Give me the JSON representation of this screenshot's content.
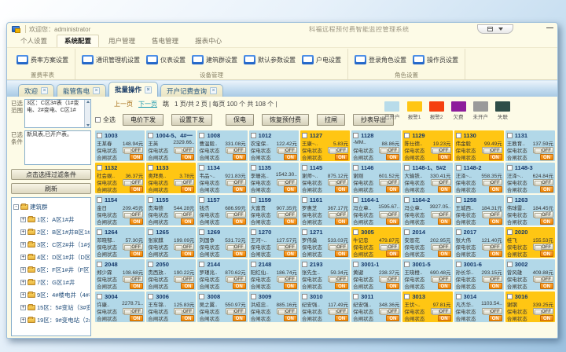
{
  "window": {
    "welcome": "欢迎您：administrator",
    "title": "科福远程预付费智能监控管理系统",
    "minimize": "—"
  },
  "menu_tabs": [
    {
      "label": "个人设置",
      "active": false
    },
    {
      "label": "系统配置",
      "active": true
    },
    {
      "label": "用户管理",
      "active": false
    },
    {
      "label": "售电管理",
      "active": false
    },
    {
      "label": "报表中心",
      "active": false
    }
  ],
  "ribbon": {
    "groups": [
      {
        "label": "置费率表",
        "buttons": [
          "费率方案设置"
        ]
      },
      {
        "label": "设备管理",
        "buttons": [
          "通讯管理机设置",
          "仪表设置",
          "建筑群设置",
          "默认参数设置",
          "户电设置"
        ]
      },
      {
        "label": "角色设置",
        "buttons": [
          "登录角色设置",
          "操作员设置"
        ]
      }
    ]
  },
  "doc_tabs": [
    {
      "label": "欢迎",
      "active": false
    },
    {
      "label": "能管售电",
      "active": false
    },
    {
      "label": "批量操作",
      "active": true
    },
    {
      "label": "开户记费查询",
      "active": false
    }
  ],
  "icons": {
    "close": "×",
    "expand": "+",
    "collapse": "-"
  },
  "sidebar": {
    "range_label": "已选范围",
    "range_value": "3区：C区3#表（1#变电、2#变电、C区1#",
    "cond_label": "已选条件",
    "cond_value": "新风表,已开户表。",
    "filter_button": "点击选择过滤条件",
    "refresh_button": "刷新",
    "tree_root": "建筑群",
    "tree_items": [
      "1区：A区1#井",
      "2区：B区1#井B区1#",
      "3区：C区2#井（1#会",
      "4区：D区1#井（D区1",
      "6区：F区1#井（F区1#",
      "7区：G区1#井",
      "9区：4#楼电井（4#楼",
      "15区：5#变站（3#变",
      "19区：9#变电站（2#"
    ]
  },
  "pagination": {
    "prev": "上一页",
    "next": "下一页",
    "jump": "跳",
    "info": "1 页/共 2 页 | 每页 100 个 共 108 个 |"
  },
  "toolbar": {
    "select_all": "全选",
    "send_buttons": [
      "电价下发",
      "设置下发"
    ],
    "op_buttons": [
      "保电",
      "恢复预付费",
      "拉闸",
      "抄表导出"
    ]
  },
  "legend": [
    {
      "label": "已开户",
      "color": "#b8dcea"
    },
    {
      "label": "报警1",
      "color": "#ffc613"
    },
    {
      "label": "报警2",
      "color": "#f5400e"
    },
    {
      "label": "欠费",
      "color": "#8d1d9b"
    },
    {
      "label": "未开户",
      "color": "#9a9a9a"
    },
    {
      "label": "失联",
      "color": "#2e4d48"
    }
  ],
  "card_labels": {
    "protect": "保电状态",
    "breaker": "合闸状态",
    "off": "OFF",
    "on": "ON"
  },
  "colors": {
    "card_open": "#b2d8e8",
    "card_alarm1": "#ffc613",
    "breaker_on": "#ee8400"
  },
  "cards": [
    {
      "room": "1003",
      "name": "王某春",
      "amount": "148.94元",
      "state": "b"
    },
    {
      "room": "1004-5、4#一",
      "name": "王英",
      "amount": "2329.66..",
      "state": "b"
    },
    {
      "room": "1008",
      "name": "曹温毅..",
      "amount": "331.08元",
      "state": "b"
    },
    {
      "room": "1012",
      "name": "农宝保..",
      "amount": "122.42元",
      "state": "b"
    },
    {
      "room": "1127",
      "name": "王康~..",
      "amount": "5.83元",
      "state": "y"
    },
    {
      "room": "1128",
      "name": "-MM..",
      "amount": "88.86元",
      "state": "b"
    },
    {
      "room": "1129",
      "name": "陈仕德..",
      "amount": "19.23元",
      "state": "y"
    },
    {
      "room": "1130",
      "name": "伟金毅",
      "amount": "99.49元",
      "state": "y"
    },
    {
      "room": "1131",
      "name": "王教育..",
      "amount": "137.59元",
      "state": "b"
    },
    {
      "room": "1132",
      "name": "社会娱..",
      "amount": "36.37元",
      "state": "y"
    },
    {
      "room": "1133",
      "name": "奥拜奥..",
      "amount": "3.78元",
      "state": "y"
    },
    {
      "room": "1134",
      "name": "韦品~..",
      "amount": "921.83元",
      "state": "b"
    },
    {
      "room": "1135",
      "name": "李珊兆..",
      "amount": "1542.30..",
      "state": "b"
    },
    {
      "room": "1145",
      "name": "谢师~..",
      "amount": "875.12元",
      "state": "b"
    },
    {
      "room": "1146",
      "name": "谢刚",
      "amount": "601.52元",
      "state": "b"
    },
    {
      "room": "1148-1、5#2",
      "name": "大输铁..",
      "amount": "330.41元",
      "state": "b"
    },
    {
      "room": "1148-2",
      "name": "汪泽~..",
      "amount": "558.35元",
      "state": "b"
    },
    {
      "room": "1148-3",
      "name": "汪泽~..",
      "amount": "624.84元",
      "state": "b"
    },
    {
      "room": "1154",
      "name": "金日",
      "amount": "209.45元",
      "state": "b"
    },
    {
      "room": "1155",
      "name": "贵海德",
      "amount": "544.28元",
      "state": "b"
    },
    {
      "room": "1157",
      "name": "钱杰",
      "amount": "686.99元",
      "state": "b"
    },
    {
      "room": "1159",
      "name": "大富贵",
      "amount": "907.35元",
      "state": "b"
    },
    {
      "room": "1161",
      "name": "罗惠芝",
      "amount": "367.17元",
      "state": "b"
    },
    {
      "room": "1164-1",
      "name": "冯立章..",
      "amount": "1595.67..",
      "state": "b"
    },
    {
      "room": "1164-2",
      "name": "冯立章..",
      "amount": "3927.05..",
      "state": "b"
    },
    {
      "room": "1258",
      "name": "王城西..",
      "amount": "184.31元",
      "state": "b"
    },
    {
      "room": "1263",
      "name": "伟球雷..",
      "amount": "184.45元",
      "state": "b"
    },
    {
      "room": "1264",
      "name": "邓晓郁..",
      "amount": "57.30元",
      "state": "b"
    },
    {
      "room": "1265",
      "name": "张家麒",
      "amount": "199.09元",
      "state": "b"
    },
    {
      "room": "1269",
      "name": "刘国争",
      "amount": "531.72元",
      "state": "b"
    },
    {
      "room": "1270",
      "name": "王河~..",
      "amount": "127.57元",
      "state": "b"
    },
    {
      "room": "1271",
      "name": "罗伟燊",
      "amount": "533.03元",
      "state": "b"
    },
    {
      "room": "3005",
      "name": "牛记忠",
      "amount": "479.87元",
      "state": "y"
    },
    {
      "room": "2014",
      "name": "安恩花",
      "amount": "202.95元",
      "state": "b"
    },
    {
      "room": "2017",
      "name": "张大伟",
      "amount": "121.40元",
      "state": "b"
    },
    {
      "room": "2020",
      "name": "桂飞",
      "amount": "155.53元",
      "state": "y"
    },
    {
      "room": "2048",
      "name": "郑少霖",
      "amount": "108.68元",
      "state": "b"
    },
    {
      "room": "2050",
      "name": "贵西放..",
      "amount": "190.22元",
      "state": "b"
    },
    {
      "room": "2144",
      "name": "罗瑾兆..",
      "amount": "870.62元",
      "state": "b"
    },
    {
      "room": "2148",
      "name": "阳红仙..",
      "amount": "186.74元",
      "state": "b"
    },
    {
      "room": "2193",
      "name": "张先生..",
      "amount": "59.34元",
      "state": "b"
    },
    {
      "room": "3001-1",
      "name": "黄键",
      "amount": "238.37元",
      "state": "b"
    },
    {
      "room": "3001-5",
      "name": "王晓橙..",
      "amount": "690.48元",
      "state": "b"
    },
    {
      "room": "3001-6",
      "name": "孙长华..",
      "amount": "293.15元",
      "state": "b"
    },
    {
      "room": "3002",
      "name": "曾风雄",
      "amount": "409.88元",
      "state": "b"
    },
    {
      "room": "3004",
      "name": "许康..",
      "amount": "2278.71..",
      "state": "b"
    },
    {
      "room": "3006",
      "name": "王车锦..",
      "amount": "125.83元",
      "state": "b"
    },
    {
      "room": "3008",
      "name": "吴之翼..",
      "amount": "550.97元",
      "state": "b"
    },
    {
      "room": "3009",
      "name": "洪成忠..",
      "amount": "885.16元",
      "state": "b"
    },
    {
      "room": "3010",
      "name": "纪安强..",
      "amount": "117.49元",
      "state": "b"
    },
    {
      "room": "3011",
      "name": "纪安强..",
      "amount": "348.36元",
      "state": "b"
    },
    {
      "room": "3013",
      "name": "王伏~..",
      "amount": "97.81元",
      "state": "y"
    },
    {
      "room": "3014",
      "name": "凡杰华..",
      "amount": "1103.54..",
      "state": "b"
    },
    {
      "room": "3016",
      "name": "谢钢",
      "amount": "339.25元",
      "state": "y"
    }
  ]
}
